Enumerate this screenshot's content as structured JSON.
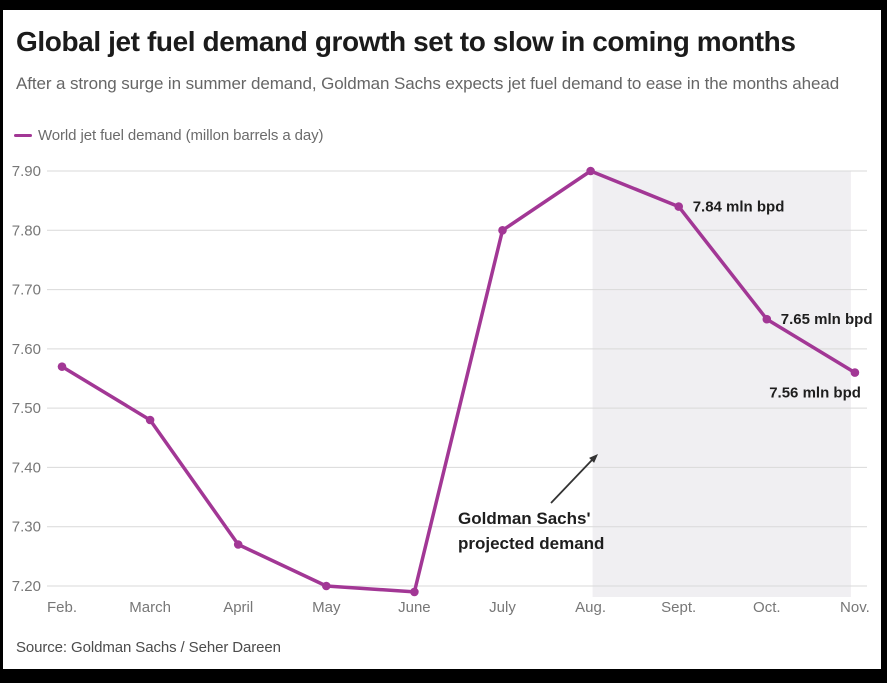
{
  "header": {
    "title": "Global jet fuel demand growth set to slow in coming months",
    "subtitle": "After a strong surge in summer demand, Goldman Sachs expects jet fuel demand to ease in the months ahead"
  },
  "legend": {
    "label": "World jet fuel demand (millon barrels a day)"
  },
  "source": "Source: Goldman Sachs / Seher Dareen",
  "colors": {
    "line": "#a23795",
    "projection_shade": "#f0eff2",
    "grid": "#d9d9d9",
    "tick_text": "#777777",
    "annotation_text": "#1e1e1e",
    "letterbox": "#000000"
  },
  "chart_data": {
    "type": "line",
    "title": "Global jet fuel demand growth set to slow in coming months",
    "categories": [
      "Feb.",
      "March",
      "April",
      "May",
      "June",
      "July",
      "Aug.",
      "Sept.",
      "Oct.",
      "Nov."
    ],
    "series": [
      {
        "name": "World jet fuel demand (millon barrels a day)",
        "values": [
          7.57,
          7.48,
          7.27,
          7.2,
          7.19,
          7.8,
          7.9,
          7.84,
          7.65,
          7.56
        ]
      }
    ],
    "ylim": [
      7.2,
      7.9
    ],
    "yticks": [
      7.2,
      7.3,
      7.4,
      7.5,
      7.6,
      7.7,
      7.8,
      7.9
    ],
    "grid": true,
    "legend_position": "top-left",
    "projected_region": {
      "start_category": "Aug.",
      "end_category": "Nov.",
      "label_lines": [
        "Goldman Sachs'",
        "projected demand"
      ],
      "has_arrow": true
    },
    "point_labels": [
      {
        "category": "Sept.",
        "value": 7.84,
        "text": "7.84 mln bpd",
        "placement": "right"
      },
      {
        "category": "Oct.",
        "value": 7.65,
        "text": "7.65 mln bpd",
        "placement": "right"
      },
      {
        "category": "Nov.",
        "value": 7.56,
        "text": "7.56 mln bpd",
        "placement": "below-left"
      }
    ]
  }
}
